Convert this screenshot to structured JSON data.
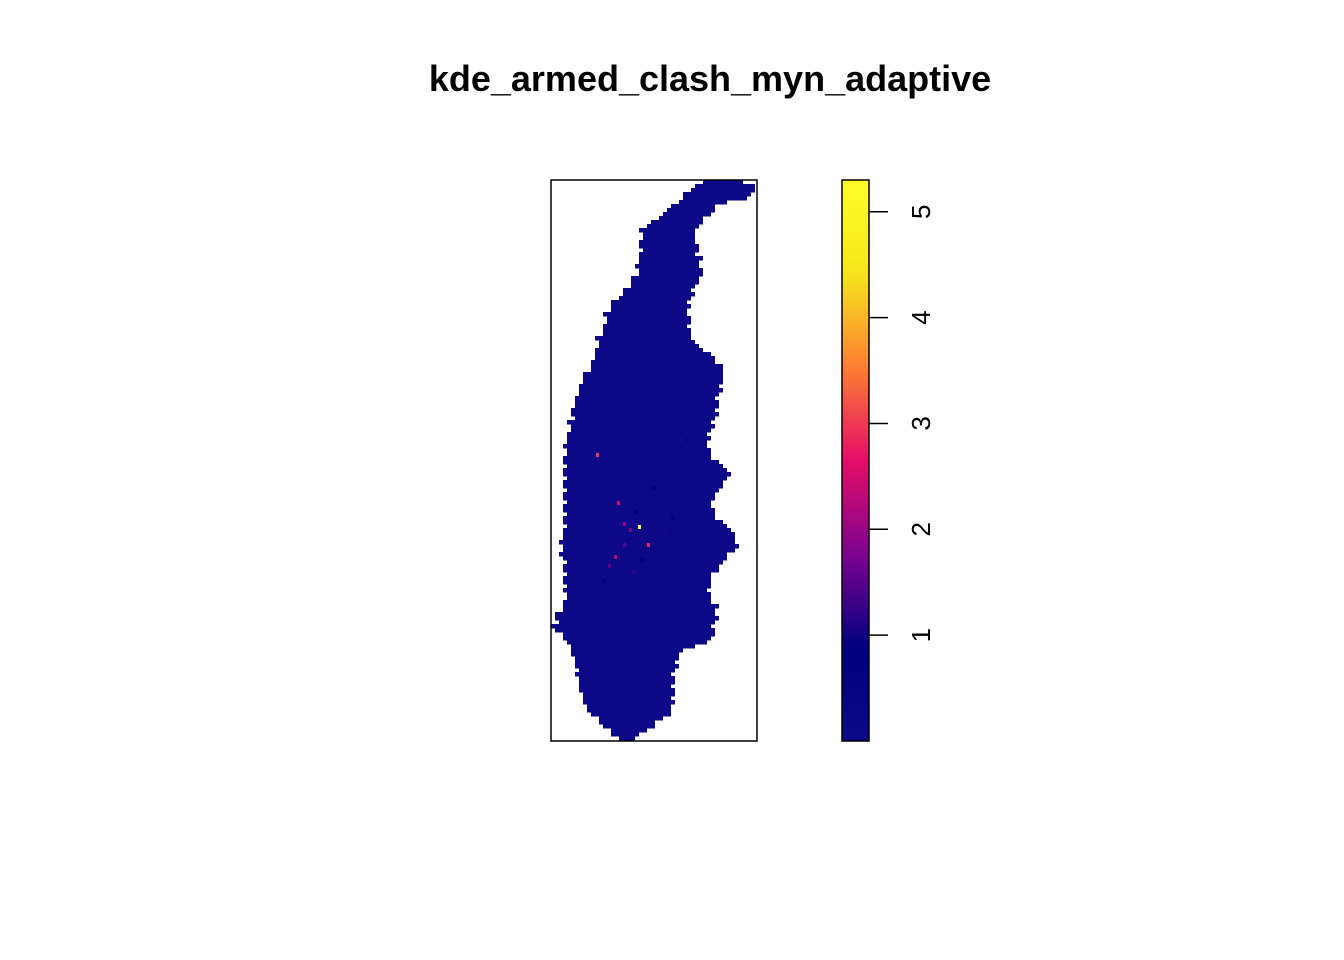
{
  "chart_data": {
    "type": "heatmap",
    "title": "kde_armed_clash_myn_adaptive",
    "xlabel": "",
    "ylabel": "",
    "axes_shown": false,
    "colorscale": {
      "name": "plasma-like",
      "stops": [
        "#0d0887",
        "#00007f",
        "#7d038e",
        "#e60d69",
        "#fd7f32",
        "#f5e61c",
        "#fffc2a"
      ],
      "range": [
        0,
        5.3
      ],
      "ticks": [
        1,
        2,
        3,
        4,
        5
      ],
      "tick_labels": [
        "1",
        "2",
        "3",
        "4",
        "5"
      ]
    },
    "background_value": 0.05,
    "hotspots": [
      {
        "col": 15,
        "row": 91,
        "value": 3.0
      },
      {
        "col": 22,
        "row": 107,
        "value": 2.4
      },
      {
        "col": 24,
        "row": 114,
        "value": 2.0
      },
      {
        "col": 26,
        "row": 116,
        "value": 1.8
      },
      {
        "col": 29,
        "row": 115,
        "value": 5.2
      },
      {
        "col": 32,
        "row": 121,
        "value": 2.8
      },
      {
        "col": 21,
        "row": 125,
        "value": 2.2
      },
      {
        "col": 24,
        "row": 121,
        "value": 1.5
      },
      {
        "col": 19,
        "row": 128,
        "value": 1.6
      },
      {
        "col": 27,
        "row": 130,
        "value": 1.2
      },
      {
        "col": 39,
        "row": 117,
        "value": 1.0
      },
      {
        "col": 30,
        "row": 126,
        "value": 0.9
      },
      {
        "col": 34,
        "row": 102,
        "value": 0.8
      },
      {
        "col": 45,
        "row": 86,
        "value": 0.6
      },
      {
        "col": 28,
        "row": 110,
        "value": 0.9
      },
      {
        "col": 17,
        "row": 133,
        "value": 0.8
      },
      {
        "col": 40,
        "row": 112,
        "value": 0.7
      }
    ]
  }
}
